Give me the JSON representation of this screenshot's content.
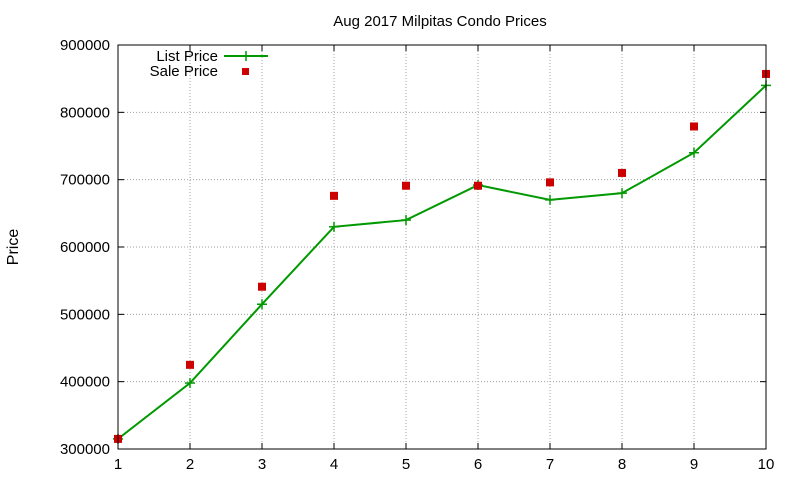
{
  "chart_data": {
    "type": "line",
    "title": "Aug 2017 Milpitas Condo Prices",
    "xlabel": "",
    "ylabel": "Price",
    "x": [
      1,
      2,
      3,
      4,
      5,
      6,
      7,
      8,
      9,
      10
    ],
    "xlim": [
      1,
      10
    ],
    "ylim": [
      300000,
      900000
    ],
    "x_ticks": [
      "1",
      "2",
      "3",
      "4",
      "5",
      "6",
      "7",
      "8",
      "9",
      "10"
    ],
    "y_ticks": [
      "300000",
      "400000",
      "500000",
      "600000",
      "700000",
      "800000",
      "900000"
    ],
    "grid": true,
    "legend_position": "top-left",
    "series": [
      {
        "name": "List Price",
        "style": "line-with-plus-markers",
        "color": "#009900",
        "values": [
          315000,
          398000,
          515000,
          630000,
          640000,
          692000,
          670000,
          680000,
          740000,
          840000
        ]
      },
      {
        "name": "Sale Price",
        "style": "square-markers",
        "color": "#cc0000",
        "values": [
          315000,
          425000,
          541000,
          676000,
          691000,
          691000,
          696000,
          710000,
          779000,
          857000
        ]
      }
    ]
  }
}
